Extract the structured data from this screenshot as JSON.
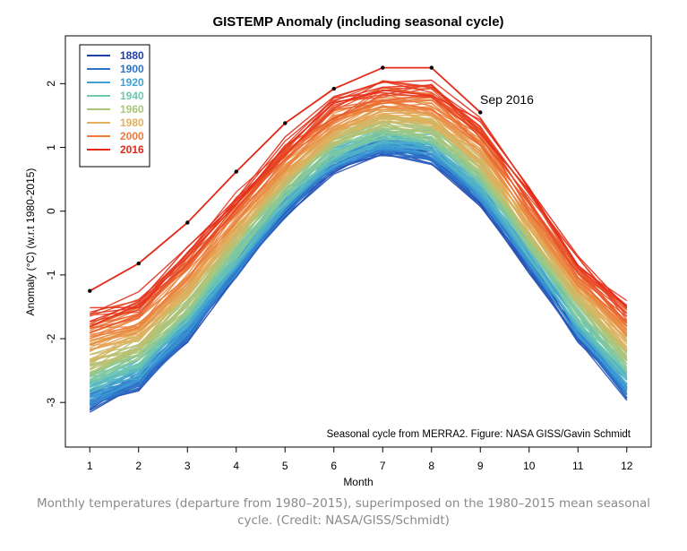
{
  "chart_data": {
    "type": "line",
    "title": "GISTEMP Anomaly (including seasonal cycle)",
    "xlabel": "Month",
    "ylabel": "Anomaly (°C) (w.r.t 1980-2015)",
    "x": [
      1,
      2,
      3,
      4,
      5,
      6,
      7,
      8,
      9,
      10,
      11,
      12
    ],
    "xlim": [
      0.5,
      12.5
    ],
    "ylim": [
      -3.7,
      2.75
    ],
    "xticks": [
      1,
      2,
      3,
      4,
      5,
      6,
      7,
      8,
      9,
      10,
      11,
      12
    ],
    "yticks": [
      -3,
      -2,
      -1,
      0,
      1,
      2
    ],
    "grid": false,
    "legend_position": "top-left",
    "legend": [
      {
        "label": "1880",
        "color": "#1f3fa8"
      },
      {
        "label": "1900",
        "color": "#2d72c8"
      },
      {
        "label": "1920",
        "color": "#3fa2d6"
      },
      {
        "label": "1940",
        "color": "#6ec8b0"
      },
      {
        "label": "1960",
        "color": "#a7c77a"
      },
      {
        "label": "1980",
        "color": "#e3b05c"
      },
      {
        "label": "2000",
        "color": "#ec7a3a"
      },
      {
        "label": "2016",
        "color": "#e32818"
      }
    ],
    "series_envelope": {
      "description_years": [
        1880,
        2016
      ],
      "oldest_shape": [
        -3.05,
        -2.7,
        -1.95,
        -0.95,
        0.0,
        0.7,
        1.0,
        0.85,
        0.2,
        -0.85,
        -1.95,
        -2.85
      ],
      "recent_shape": [
        -1.6,
        -1.35,
        -0.65,
        0.25,
        1.05,
        1.7,
        2.0,
        1.95,
        1.35,
        0.3,
        -0.75,
        -1.45
      ]
    },
    "series": [
      {
        "name": "2016",
        "color": "#e32818",
        "values": [
          -1.25,
          -0.82,
          -0.18,
          0.62,
          1.38,
          1.92,
          2.25,
          2.25,
          1.55,
          null,
          null,
          null
        ]
      }
    ],
    "annotations": [
      {
        "text": "Sep 2016",
        "x": 9,
        "y": 1.55
      },
      {
        "text": "Seasonal cycle from MERRA2. Figure: NASA GISS/Gavin Schmidt",
        "position": "bottom-right"
      }
    ]
  },
  "caption": "Monthly temperatures (departure from 1980–2015), superimposed on the 1980–2015 mean seasonal cycle. (Credit: NASA/GISS/Schmidt)"
}
